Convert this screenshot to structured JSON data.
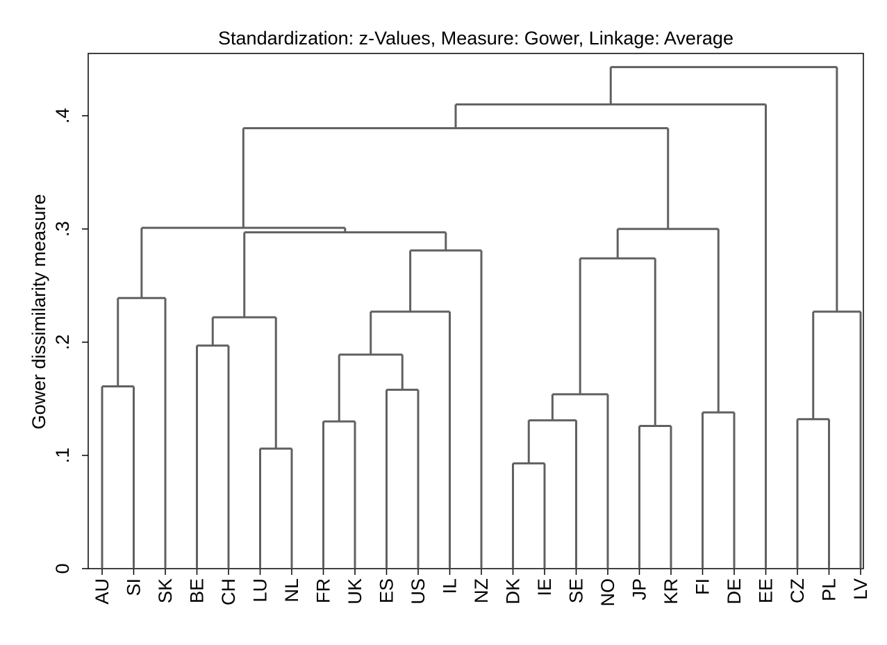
{
  "chart_data": {
    "type": "dendrogram",
    "title": "Standardization: z-Values, Measure: Gower, Linkage: Average",
    "ylabel": "Gower dissimilarity measure",
    "xlabel": "",
    "ylim": [
      0,
      0.455
    ],
    "yticks": [
      {
        "value": 0,
        "label": "0"
      },
      {
        "value": 0.1,
        "label": ".1"
      },
      {
        "value": 0.2,
        "label": ".2"
      },
      {
        "value": 0.3,
        "label": ".3"
      },
      {
        "value": 0.4,
        "label": ".4"
      }
    ],
    "leaves": [
      "AU",
      "SI",
      "SK",
      "BE",
      "CH",
      "LU",
      "NL",
      "FR",
      "UK",
      "ES",
      "US",
      "IL",
      "NZ",
      "DK",
      "IE",
      "SE",
      "NO",
      "JP",
      "KR",
      "FI",
      "DE",
      "EE",
      "CZ",
      "PL",
      "LV"
    ],
    "merges": [
      {
        "left": "DK",
        "right": "IE",
        "height": 0.093
      },
      {
        "left": "LU",
        "right": "NL",
        "height": 0.106
      },
      {
        "left": "JP",
        "right": "KR",
        "height": 0.126
      },
      {
        "left": "FR",
        "right": "UK",
        "height": 0.13
      },
      {
        "left": "DK+IE",
        "right": "SE",
        "height": 0.131
      },
      {
        "left": "CZ",
        "right": "PL",
        "height": 0.132
      },
      {
        "left": "FI",
        "right": "DE",
        "height": 0.138
      },
      {
        "left": "DK+IE+SE",
        "right": "NO",
        "height": 0.154
      },
      {
        "left": "ES",
        "right": "US",
        "height": 0.158
      },
      {
        "left": "AU",
        "right": "SI",
        "height": 0.161
      },
      {
        "left": "FR+UK",
        "right": "ES+US",
        "height": 0.189
      },
      {
        "left": "BE",
        "right": "CH",
        "height": 0.197
      },
      {
        "left": "BE+CH",
        "right": "LU+NL",
        "height": 0.222
      },
      {
        "left": "FR+UK+ES+US",
        "right": "IL",
        "height": 0.227
      },
      {
        "left": "CZ+PL",
        "right": "LV",
        "height": 0.227
      },
      {
        "left": "AU+SI",
        "right": "SK",
        "height": 0.239
      },
      {
        "left": "DK+IE+SE+NO",
        "right": "JP+KR",
        "height": 0.274
      },
      {
        "left": "FR+UK+ES+US+IL",
        "right": "NZ",
        "height": 0.281
      },
      {
        "left": "BE+CH+LU+NL",
        "right": "FR+UK+ES+US+IL+NZ",
        "height": 0.297
      },
      {
        "left": "DK+IE+SE+NO+JP+KR",
        "right": "FI+DE",
        "height": 0.3
      },
      {
        "left": "AU+SI+SK",
        "right": "BE+CH+LU+NL+FR+UK+ES+US+IL+NZ",
        "height": 0.301
      },
      {
        "left": "AU..NZ",
        "right": "DK..DE",
        "height": 0.389
      },
      {
        "left": "AU..DE",
        "right": "EE",
        "height": 0.41
      },
      {
        "left": "AU..EE",
        "right": "CZ+PL+LV",
        "height": 0.443
      }
    ],
    "grid": false,
    "legend": "none"
  }
}
